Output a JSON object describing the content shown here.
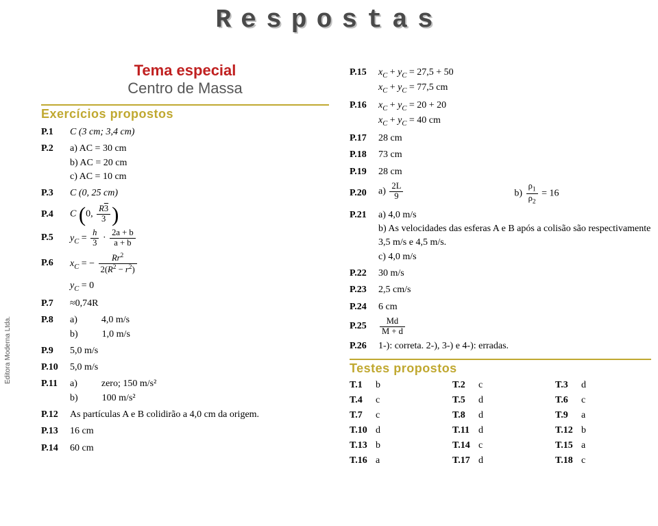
{
  "banner": "Respostas",
  "sidetext": "Editora Moderna Ltda.",
  "title_special": "Tema especial",
  "title_sub": "Centro de Massa",
  "section_exercises": "Exercícios propostos",
  "section_tests": "Testes propostos",
  "left": {
    "p1": {
      "num": "P.1",
      "ans": "C (3 cm; 3,4 cm)"
    },
    "p2": {
      "num": "P.2",
      "a": "a) AC = 30 cm",
      "b": "b) AC = 20 cm",
      "c": "c) AC = 10 cm"
    },
    "p3": {
      "num": "P.3",
      "ans": "C (0, 25 cm)"
    },
    "p4": {
      "num": "P.4",
      "pref": "C",
      "zero": "0,",
      "top": "R√3",
      "bot": "3"
    },
    "p5": {
      "num": "P.5",
      "pref": "yC =",
      "h": "h",
      "three": "3",
      "top": "2a + b",
      "bot": "a + b"
    },
    "p6": {
      "num": "P.6",
      "pref": "xC = −",
      "top": "Rr²",
      "bot": "2(R² − r²)"
    },
    "p6b": "yC = 0",
    "p7": {
      "num": "P.7",
      "ans": "≈0,74R"
    },
    "p8": {
      "num": "P.8",
      "a": "a)          4,0 m/s",
      "b": "b)          1,0 m/s"
    },
    "p9": {
      "num": "P.9",
      "ans": "5,0 m/s"
    },
    "p10": {
      "num": "P.10",
      "ans": "5,0 m/s"
    },
    "p11": {
      "num": "P.11",
      "a": "a)          zero; 150 m/s²",
      "b": "b)          100 m/s²"
    },
    "p12": {
      "num": "P.12",
      "ans": "As partículas A e B colidirão a 4,0 cm da origem."
    },
    "p13": {
      "num": "P.13",
      "ans": "16 cm"
    },
    "p14": {
      "num": "P.14",
      "ans": "60 cm"
    }
  },
  "right": {
    "p15": {
      "num": "P.15",
      "a": "xC + yC = 27,5 + 50",
      "b": "xC + yC = 77,5 cm"
    },
    "p16": {
      "num": "P.16",
      "a": "xC + yC = 20 + 20",
      "b": "xC + yC = 40 cm"
    },
    "p17": {
      "num": "P.17",
      "ans": "28 cm"
    },
    "p18": {
      "num": "P.18",
      "ans": "73 cm"
    },
    "p19": {
      "num": "P.19",
      "ans": "28 cm"
    },
    "p20": {
      "num": "P.20",
      "a_pref": "a)",
      "a_top": "2L",
      "a_bot": "9",
      "b_pref": "b)",
      "b_top": "ρ1",
      "b_bot": "ρ2",
      "b_eq": "= 16"
    },
    "p21": {
      "num": "P.21",
      "a": "a) 4,0 m/s",
      "b": "b) As velocidades das esferas A e B após a colisão são respectivamente 3,5 m/s e 4,5 m/s.",
      "c": "c) 4,0 m/s"
    },
    "p22": {
      "num": "P.22",
      "ans": "30 m/s"
    },
    "p23": {
      "num": "P.23",
      "ans": "2,5 cm/s"
    },
    "p24": {
      "num": "P.24",
      "ans": "6 cm"
    },
    "p25": {
      "num": "P.25",
      "top": "Md",
      "bot": "M + d"
    },
    "p26": {
      "num": "P.26",
      "ans": "1-): correta. 2-), 3-) e 4-): erradas."
    }
  },
  "tests": [
    {
      "n": "T.1",
      "a": "b"
    },
    {
      "n": "T.2",
      "a": "c"
    },
    {
      "n": "T.3",
      "a": "d"
    },
    {
      "n": "T.4",
      "a": "c"
    },
    {
      "n": "T.5",
      "a": "d"
    },
    {
      "n": "T.6",
      "a": "c"
    },
    {
      "n": "T.7",
      "a": "c"
    },
    {
      "n": "T.8",
      "a": "d"
    },
    {
      "n": "T.9",
      "a": "a"
    },
    {
      "n": "T.10",
      "a": "d"
    },
    {
      "n": "T.11",
      "a": "d"
    },
    {
      "n": "T.12",
      "a": "b"
    },
    {
      "n": "T.13",
      "a": "b"
    },
    {
      "n": "T.14",
      "a": "c"
    },
    {
      "n": "T.15",
      "a": "a"
    },
    {
      "n": "T.16",
      "a": "a"
    },
    {
      "n": "T.17",
      "a": "d"
    },
    {
      "n": "T.18",
      "a": "c"
    }
  ],
  "colors": {
    "accent_red": "#c02020",
    "accent_gold": "#c0a830",
    "text_gray": "#555555"
  }
}
